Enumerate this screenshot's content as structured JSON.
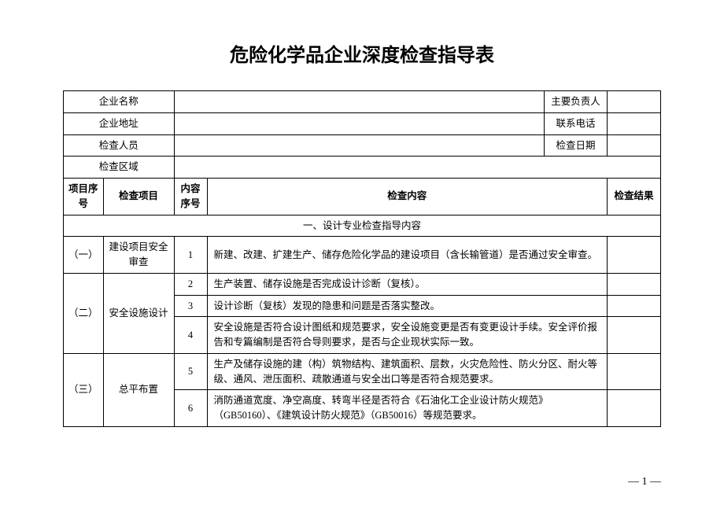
{
  "title": "危险化学品企业深度检查指导表",
  "info_rows": {
    "company_name_label": "企业名称",
    "responsible_label": "主要负责人",
    "address_label": "企业地址",
    "phone_label": "联系电话",
    "inspector_label": "检查人员",
    "date_label": "检查日期",
    "area_label": "检查区域"
  },
  "header": {
    "proj_num": "项目序号",
    "proj_name": "检查项目",
    "content_num": "内容序号",
    "content": "检查内容",
    "result": "检查结果"
  },
  "section": "一、设计专业检查指导内容",
  "rows": [
    {
      "proj_num": "（一）",
      "proj_name": "建设项目安全审查",
      "content_num": "1",
      "content": "新建、改建、扩建生产、储存危险化学品的建设项目（含长输管道）是否通过安全审查。"
    },
    {
      "proj_num": "（二）",
      "proj_name": "安全设施设计",
      "items": [
        {
          "num": "2",
          "content": "生产装置、储存设施是否完成设计诊断（复核）。"
        },
        {
          "num": "3",
          "content": "设计诊断（复核）发现的隐患和问题是否落实整改。"
        },
        {
          "num": "4",
          "content": "安全设施是否符合设计图纸和规范要求，安全设施变更是否有变更设计手续。安全评价报告和专篇编制是否符合导则要求，是否与企业现状实际一致。"
        }
      ]
    },
    {
      "proj_num": "（三）",
      "proj_name": "总平布置",
      "items": [
        {
          "num": "5",
          "content": "生产及储存设施的建（构）筑物结构、建筑面积、层数，火灾危险性、防火分区、耐火等级、通风、泄压面积、疏散通道与安全出口等是否符合规范要求。"
        },
        {
          "num": "6",
          "content": "消防通道宽度、净空高度、转弯半径是否符合《石油化工企业设计防火规范》（GB50160）、《建筑设计防火规范》（GB50016）等规范要求。"
        }
      ]
    }
  ],
  "page_num": "— 1 —"
}
